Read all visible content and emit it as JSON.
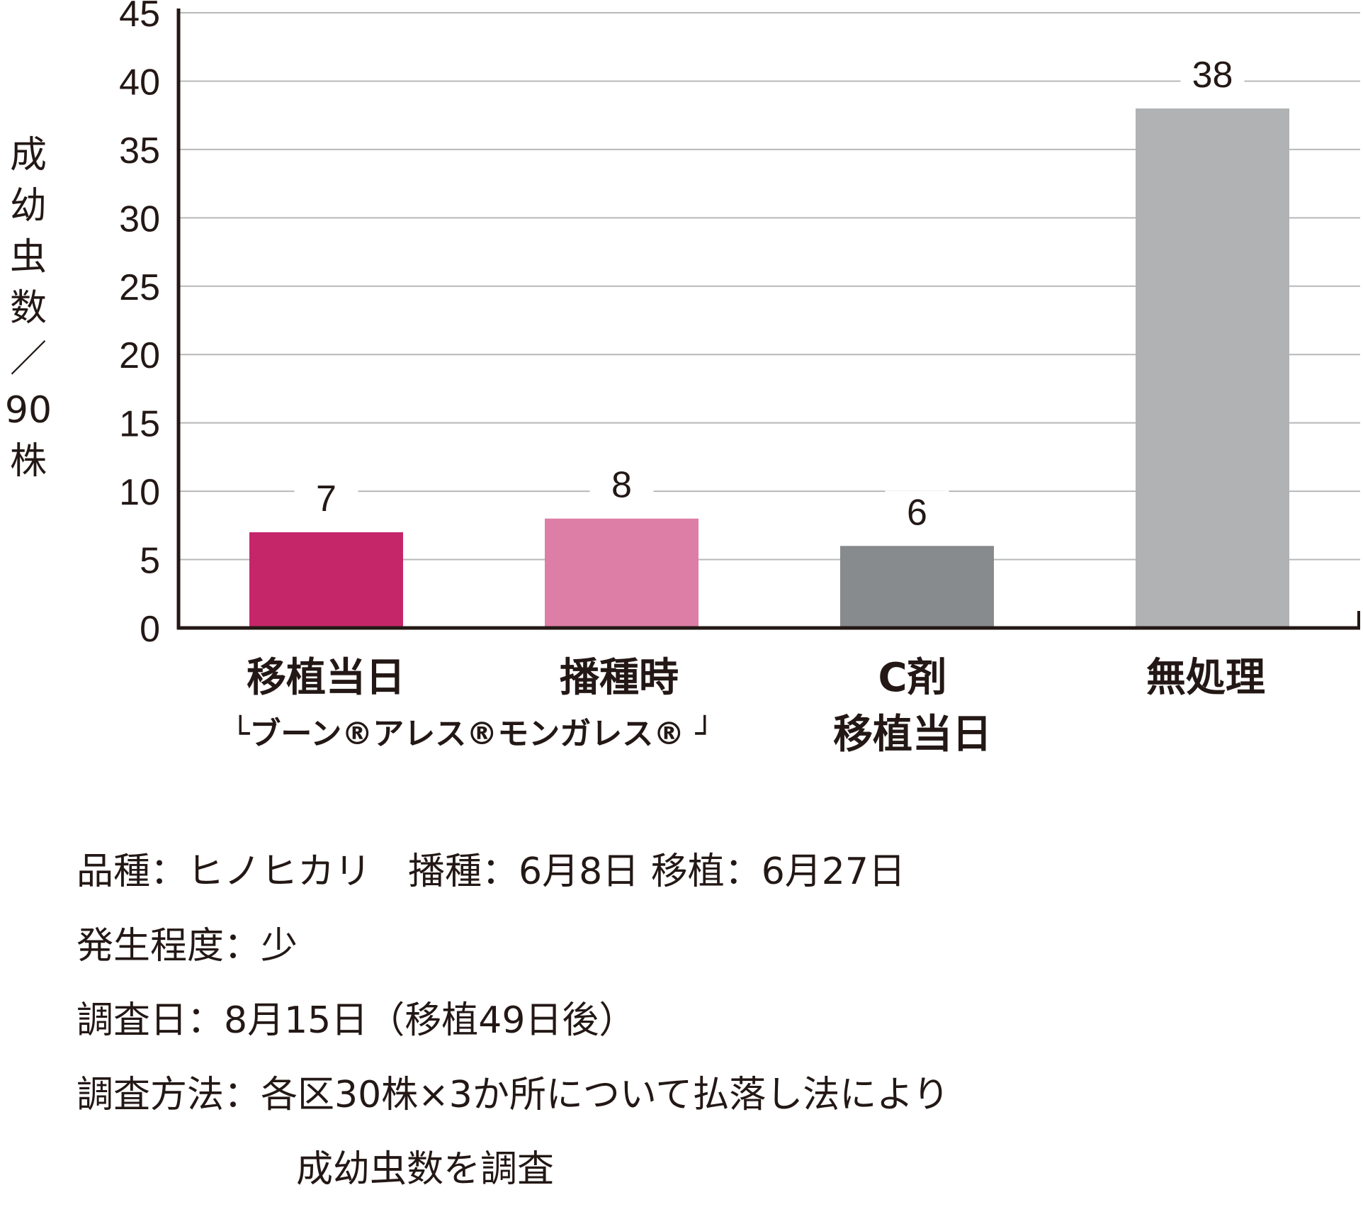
{
  "chart_data": {
    "type": "bar",
    "categories": [
      "移植当日",
      "播種時",
      "C剤",
      "無処理"
    ],
    "category_sublabels": [
      "",
      "",
      "移植当日",
      ""
    ],
    "values": [
      7,
      8,
      6,
      38
    ],
    "bar_colors": [
      "#c5266a",
      "#dd7ea6",
      "#878b8e",
      "#b0b2b4"
    ],
    "group_note": "└ブーン®アレス®モンガレス® ┘",
    "ylabel": "成幼虫数／90株",
    "ylim": [
      0,
      45
    ],
    "yticks": [
      0,
      5,
      10,
      15,
      20,
      25,
      30,
      35,
      40,
      45
    ],
    "grid": true
  },
  "notes": [
    {
      "label": "品種：",
      "value": "ヒノヒカリ　播種：6月8日 移植：6月27日"
    },
    {
      "label": "発生程度：",
      "value": "少"
    },
    {
      "label": "調査日：",
      "value": "8月15日（移植49日後）"
    },
    {
      "label": "調査方法：",
      "value": "各区30株×3か所について払落し法により"
    },
    {
      "label": "",
      "value": "成幼虫数を調査"
    }
  ]
}
